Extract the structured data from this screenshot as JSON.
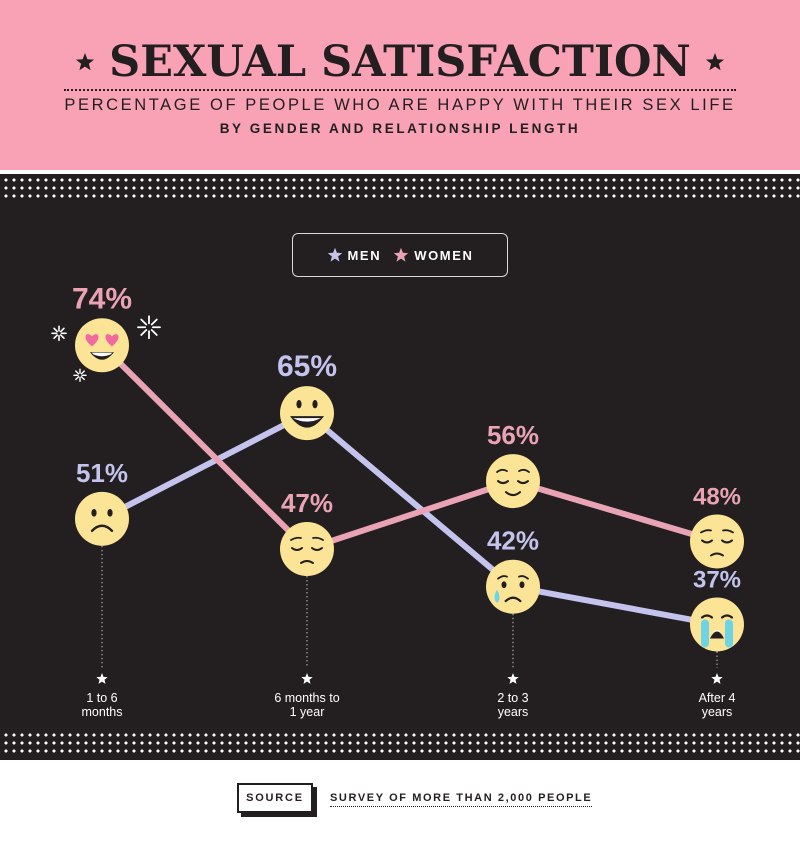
{
  "header": {
    "title": "SEXUAL SATISFACTION",
    "subtitle": "PERCENTAGE OF PEOPLE WHO ARE HAPPY WITH THEIR SEX LIFE",
    "subtitle2": "BY GENDER AND RELATIONSHIP LENGTH"
  },
  "legend": {
    "men_label": "MEN",
    "women_label": "WOMEN"
  },
  "colors": {
    "men": "#c3c3ed",
    "women": "#e9a3b4",
    "background": "#231f20",
    "header": "#f9a2b6",
    "emoji": "#fbe496"
  },
  "chart_data": {
    "type": "line",
    "categories": [
      [
        "1 to 6",
        "months"
      ],
      [
        "6 months to",
        "1 year"
      ],
      [
        "2 to 3",
        "years"
      ],
      [
        "After 4",
        "years"
      ]
    ],
    "series": [
      {
        "name": "MEN",
        "values": [
          51,
          65,
          42,
          37
        ],
        "labels": [
          "51%",
          "65%",
          "42%",
          "37%"
        ],
        "emojis": [
          "frowning-face",
          "grinning-face",
          "crying-face",
          "loudly-crying-face"
        ]
      },
      {
        "name": "WOMEN",
        "values": [
          74,
          47,
          56,
          48
        ],
        "labels": [
          "74%",
          "47%",
          "56%",
          "48%"
        ],
        "emojis": [
          "heart-eyes-face",
          "pensive-face",
          "relieved-face",
          "pensive-face"
        ]
      }
    ],
    "ylim": [
      30,
      80
    ],
    "grid": false,
    "legend_position": "top-center"
  },
  "footer": {
    "source_label": "SOURCE",
    "source_text": "SURVEY OF MORE THAN 2,000 PEOPLE"
  }
}
